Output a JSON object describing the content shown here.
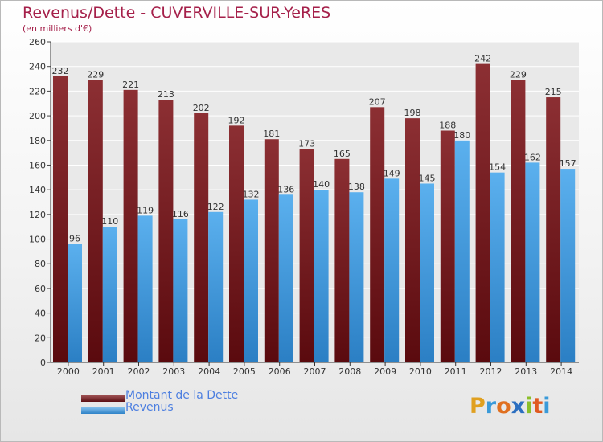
{
  "header": {
    "title": "Revenus/Dette - CUVERVILLE-SUR-YeRES",
    "subtitle": "(en milliers d'€)"
  },
  "legend": [
    {
      "label": "Montant de la Dette",
      "color": "#7a1f24"
    },
    {
      "label": "Revenus",
      "color": "#4a9ee0"
    }
  ],
  "logo": {
    "text": "Proxiti"
  },
  "colors": {
    "title": "#a5204a",
    "debt_bar": "#7a1f24",
    "revenue_bar": "#4a9ee0",
    "legend_text": "#4d7fe0"
  },
  "chart_data": {
    "type": "bar",
    "title": "Revenus/Dette - CUVERVILLE-SUR-YeRES",
    "subtitle": "(en milliers d'€)",
    "categories": [
      "2000",
      "2001",
      "2002",
      "2003",
      "2004",
      "2005",
      "2006",
      "2007",
      "2008",
      "2009",
      "2010",
      "2011",
      "2012",
      "2013",
      "2014"
    ],
    "series": [
      {
        "name": "Montant de la Dette",
        "values": [
          232,
          229,
          221,
          213,
          202,
          192,
          181,
          173,
          165,
          207,
          198,
          188,
          242,
          229,
          215
        ]
      },
      {
        "name": "Revenus",
        "values": [
          96,
          110,
          119,
          116,
          122,
          132,
          136,
          140,
          138,
          149,
          145,
          180,
          154,
          162,
          157
        ]
      }
    ],
    "ylim": [
      0,
      260
    ],
    "yticks": [
      0,
      20,
      40,
      60,
      80,
      100,
      120,
      140,
      160,
      180,
      200,
      220,
      240,
      260
    ],
    "grid": true,
    "legend_position": "bottom-left"
  }
}
